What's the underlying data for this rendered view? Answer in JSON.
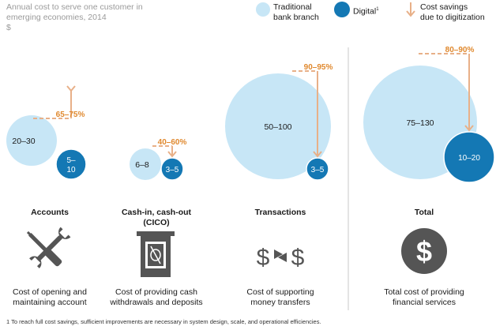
{
  "title": {
    "line1": "Annual cost to serve one customer in",
    "line2": "emerging economies, 2014",
    "unit": "$"
  },
  "legend": {
    "traditional": "Traditional",
    "traditional_line2": "bank branch",
    "digital": "Digital",
    "digital_sup": "1",
    "savings_line1": "Cost savings",
    "savings_line2": "due to digitization"
  },
  "colors": {
    "traditional": "#c7e6f6",
    "digital": "#1478b4",
    "savings_arrow": "#e8b088",
    "savings_text": "#e0892f",
    "divider": "#c8c8c8",
    "icon": "#555555"
  },
  "chart_data": {
    "type": "bubble",
    "categories": [
      "Accounts",
      "Cash-in, cash-out (CICO)",
      "Transactions",
      "Total"
    ],
    "series": [
      {
        "name": "Traditional bank branch",
        "values": [
          "20–30",
          "6–8",
          "50–100",
          "75–130"
        ]
      },
      {
        "name": "Digital",
        "values": [
          "5–10",
          "3–5",
          "3–5",
          "10–20"
        ]
      }
    ],
    "savings": [
      "65–75%",
      "40–60%",
      "90–95%",
      "80–90%"
    ]
  },
  "groups": [
    {
      "label_line1": "Accounts",
      "label_line2": "",
      "traditional": "20–30",
      "digital_line1": "5–",
      "digital_line2": "10",
      "savings": "65–75%",
      "icon": "wrench-screwdriver-icon",
      "desc_line1": "Cost of opening and",
      "desc_line2": "maintaining account"
    },
    {
      "label_line1": "Cash-in, cash-out",
      "label_line2": "(CICO)",
      "traditional": "6–8",
      "digital_line1": "3–5",
      "digital_line2": "",
      "savings": "40–60%",
      "icon": "atm-cash-icon",
      "desc_line1": "Cost of providing cash",
      "desc_line2": "withdrawals and deposits"
    },
    {
      "label_line1": "Transactions",
      "label_line2": "",
      "traditional": "50–100",
      "digital_line1": "3–5",
      "digital_line2": "",
      "savings": "90–95%",
      "icon": "dollar-exchange-icon",
      "desc_line1": "Cost of supporting",
      "desc_line2": "money transfers"
    },
    {
      "label_line1": "Total",
      "label_line2": "",
      "traditional": "75–130",
      "digital_line1": "10–20",
      "digital_line2": "",
      "savings": "80–90%",
      "icon": "dollar-coin-icon",
      "desc_line1": "Total cost of providing",
      "desc_line2": "financial services"
    }
  ],
  "footnote": "1  To reach full cost savings, sufficient improvements are necessary in system design, scale, and operational efficiencies."
}
